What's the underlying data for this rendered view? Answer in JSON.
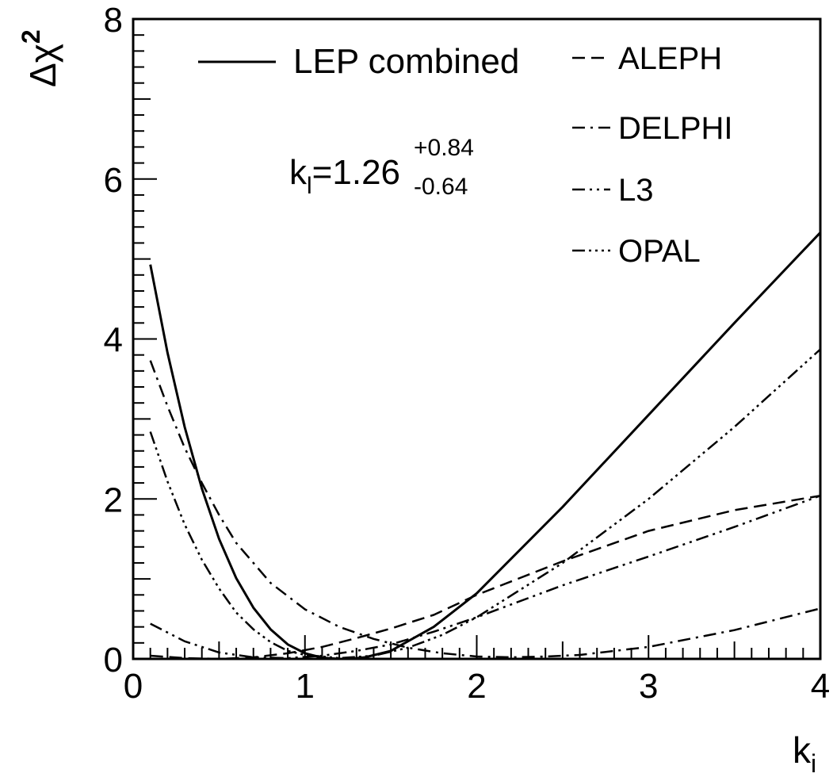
{
  "chart_data": {
    "type": "line",
    "xlabel": {
      "main": "k",
      "sub": "i"
    },
    "ylabel": {
      "main": "Δχ",
      "sup": "2"
    },
    "xlim": [
      0,
      4
    ],
    "ylim": [
      0,
      8
    ],
    "x_ticks": [
      "0",
      "1",
      "2",
      "3",
      "4"
    ],
    "y_ticks": [
      "0",
      "2",
      "4",
      "6",
      "8"
    ],
    "grid": false,
    "legend_placement": "top-right",
    "annotation": {
      "base": "k",
      "sub": "l",
      "value": "=1.26",
      "plus": "+0.84",
      "minus": "-0.64"
    },
    "series": [
      {
        "name": "LEP combined",
        "style": "solid",
        "x": [
          0.1,
          0.2,
          0.3,
          0.4,
          0.5,
          0.6,
          0.7,
          0.8,
          0.9,
          1.0,
          1.1,
          1.2,
          1.26,
          1.35,
          1.5,
          1.75,
          2.0,
          2.5,
          3.0,
          3.5,
          4.0
        ],
        "y": [
          4.93,
          3.83,
          2.9,
          2.13,
          1.5,
          1.01,
          0.64,
          0.37,
          0.18,
          0.07,
          0.015,
          0.0,
          0.0,
          0.02,
          0.1,
          0.4,
          0.82,
          1.9,
          3.05,
          4.2,
          5.33
        ]
      },
      {
        "name": "ALEPH",
        "style": "dashed",
        "x": [
          0.1,
          0.3,
          0.5,
          0.7,
          0.9,
          1.1,
          1.3,
          1.5,
          1.75,
          2.0,
          2.5,
          3.0,
          3.5,
          4.0
        ],
        "y": [
          0.04,
          0.01,
          0.0,
          0.02,
          0.07,
          0.15,
          0.26,
          0.38,
          0.55,
          0.8,
          1.22,
          1.6,
          1.86,
          2.04
        ]
      },
      {
        "name": "DELPHI",
        "style": "dashdot",
        "x": [
          0.1,
          0.2,
          0.3,
          0.4,
          0.5,
          0.6,
          0.8,
          1.0,
          1.2,
          1.4,
          1.6,
          1.8,
          2.0,
          2.2,
          2.4,
          2.6,
          3.0,
          3.5,
          4.0
        ],
        "y": [
          3.73,
          3.16,
          2.64,
          2.2,
          1.8,
          1.45,
          0.95,
          0.62,
          0.4,
          0.25,
          0.14,
          0.07,
          0.03,
          0.02,
          0.03,
          0.05,
          0.15,
          0.36,
          0.63
        ]
      },
      {
        "name": "L3",
        "style": "dashdotdot",
        "x": [
          0.1,
          0.3,
          0.5,
          0.7,
          0.9,
          1.1,
          1.3,
          1.5,
          1.75,
          2.0,
          2.5,
          3.0,
          3.5,
          4.0
        ],
        "y": [
          0.44,
          0.22,
          0.08,
          0.02,
          0.01,
          0.04,
          0.1,
          0.18,
          0.34,
          0.52,
          0.92,
          1.28,
          1.65,
          2.04
        ]
      },
      {
        "name": "OPAL",
        "style": "dashdotdotdot",
        "x": [
          0.1,
          0.2,
          0.3,
          0.4,
          0.5,
          0.6,
          0.7,
          0.8,
          0.9,
          1.0,
          1.2,
          1.4,
          1.6,
          1.8,
          2.0,
          2.5,
          3.0,
          3.5,
          4.0
        ],
        "y": [
          2.84,
          2.22,
          1.68,
          1.24,
          0.88,
          0.58,
          0.37,
          0.21,
          0.1,
          0.05,
          0.01,
          0.04,
          0.14,
          0.3,
          0.52,
          1.2,
          2.0,
          2.9,
          3.87
        ]
      }
    ]
  }
}
